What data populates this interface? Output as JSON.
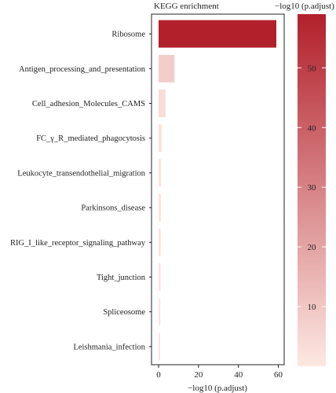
{
  "chart_data": {
    "type": "bar",
    "orientation": "horizontal",
    "title": "KEGG enrichment",
    "xlabel": "−log10 (p.adjust)",
    "ylabel": "",
    "xlim": [
      0,
      62
    ],
    "xticks": [
      0,
      20,
      40,
      60
    ],
    "categories": [
      "Ribosome",
      "Antigen_processing_and_presentation",
      "Cell_adhesion_Molecules_CAMS",
      "FC_γ_R_mediated_phagocytosis",
      "Leukocyte_transendothelial_migration",
      "Parkinsons_disease",
      "RIG_I_like_receptor_signaling_pathway",
      "Tight_junction",
      "Spliceosome",
      "Leishmania_infection"
    ],
    "values": [
      59,
      8,
      3.5,
      1.6,
      1.3,
      1.2,
      1.1,
      1.0,
      0.9,
      0.8
    ],
    "colorbar": {
      "title": "−log10 (p.adjust)",
      "range": [
        0,
        59
      ],
      "ticks": [
        10,
        20,
        30,
        40,
        50
      ],
      "color_low": "#fde8e2",
      "color_high": "#b2202b"
    },
    "grid": false,
    "legend": "right"
  }
}
